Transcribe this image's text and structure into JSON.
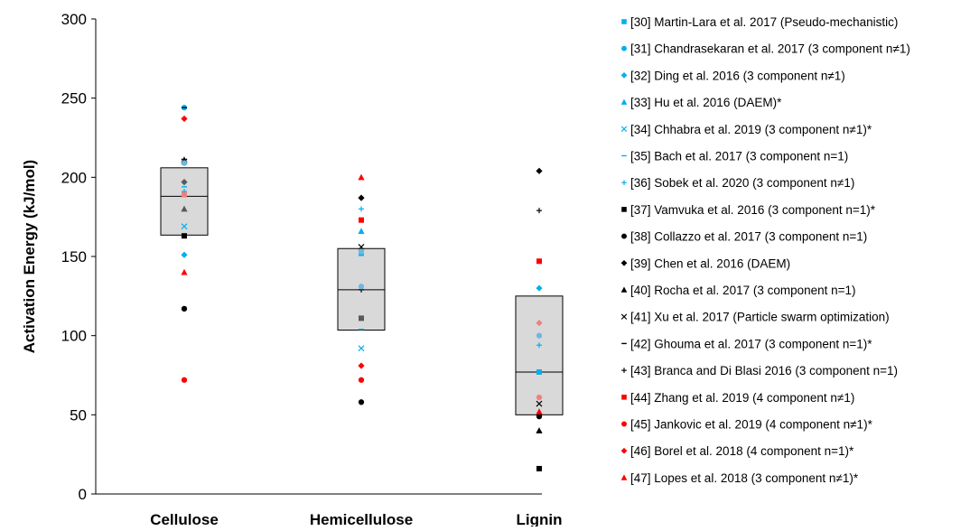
{
  "chart_data": {
    "type": "scatter",
    "title": "",
    "xlabel": "",
    "ylabel": "Activation Energy (kJ/mol)",
    "ylim": [
      0,
      300
    ],
    "yticks": [
      0,
      50,
      100,
      150,
      200,
      250,
      300
    ],
    "categories": [
      "Cellulose",
      "Hemicellulose",
      "Lignin"
    ],
    "grid": false,
    "legend_position": "right",
    "boxes": [
      {
        "category": "Cellulose",
        "q1": 163.5,
        "median": 188,
        "q3": 206
      },
      {
        "category": "Hemicellulose",
        "q1": 103.5,
        "median": 129,
        "q3": 155
      },
      {
        "category": "Lignin",
        "q1": 50,
        "median": 77,
        "q3": 125
      }
    ],
    "series": [
      {
        "name": "[30] Martin-Lara et al. 2017 (Pseudo-mechanistic)",
        "marker": "square",
        "color": "#00B0F0",
        "values": [
          null,
          152,
          77
        ]
      },
      {
        "name": "[31] Chandrasekaran et al. 2017 (3 component n≠1)",
        "marker": "circle",
        "color": "#00B0F0",
        "values": [
          244,
          null,
          null
        ]
      },
      {
        "name": "[32] Ding et al. 2016 (3 component n≠1)",
        "marker": "diamond",
        "color": "#00B0F0",
        "values": [
          151,
          null,
          130
        ]
      },
      {
        "name": "[33] Hu et al. 2016 (DAEM)*",
        "marker": "triangle",
        "color": "#00B0F0",
        "values": [
          null,
          166,
          null
        ]
      },
      {
        "name": "[34] Chhabra et al. 2019 (3 component n≠1)*",
        "marker": "x",
        "color": "#00B0F0",
        "values": [
          169,
          92,
          null
        ]
      },
      {
        "name": "[35] Bach et al. 2017 (3 component n=1)",
        "marker": "dash",
        "color": "#00B0F0",
        "values": [
          194,
          104,
          null
        ]
      },
      {
        "name": "[36] Sobek et al. 2020 (3 component n≠1)",
        "marker": "plus",
        "color": "#00B0F0",
        "values": [
          191,
          180,
          94
        ]
      },
      {
        "name": "[37] Vamvuka et al. 2016 (3 component n=1)*",
        "marker": "square",
        "color": "#000000",
        "values": [
          163,
          null,
          16
        ]
      },
      {
        "name": "[38] Collazzo et al. 2017 (3 component n=1)",
        "marker": "circle",
        "color": "#000000",
        "values": [
          117,
          58,
          49
        ]
      },
      {
        "name": "[39] Chen et al. 2016 (DAEM)",
        "marker": "diamond",
        "color": "#000000",
        "values": [
          null,
          187,
          204
        ]
      },
      {
        "name": "[40] Rocha et al. 2017 (3 component n=1)",
        "marker": "triangle",
        "color": "#000000",
        "values": [
          211,
          null,
          40
        ]
      },
      {
        "name": "[41] Xu et al. 2017 (Particle swarm optimization)",
        "marker": "x",
        "color": "#000000",
        "values": [
          210,
          156,
          57
        ]
      },
      {
        "name": "[42] Ghouma et al. 2017 (3 component n=1)*",
        "marker": "dash",
        "color": "#000000",
        "values": [
          244,
          null,
          39
        ]
      },
      {
        "name": "[43] Branca and Di Blasi 2016 (3 component n=1)",
        "marker": "plus",
        "color": "#000000",
        "values": [
          null,
          129,
          179
        ]
      },
      {
        "name": "[44] Zhang et al. 2019 (4 component n≠1)",
        "marker": "square",
        "color": "#FF0000",
        "values": [
          null,
          173,
          147
        ]
      },
      {
        "name": "[45] Jankovic et al. 2019 (4 component n≠1)*",
        "marker": "circle",
        "color": "#FF0000",
        "values": [
          72,
          72,
          null
        ]
      },
      {
        "name": "[46] Borel et al. 2018 (4 component n=1)*",
        "marker": "diamond",
        "color": "#FF0000",
        "values": [
          237,
          81,
          null
        ]
      },
      {
        "name": "[47] Lopes et al. 2018 (3 component n≠1)*",
        "marker": "triangle",
        "color": "#FF0000",
        "values": [
          140,
          200,
          52
        ]
      }
    ],
    "overlay_points": [
      {
        "category": "Cellulose",
        "marker": "square",
        "color": "#F08080",
        "value": 189
      },
      {
        "category": "Cellulose",
        "marker": "diamond",
        "color": "#595959",
        "value": 197
      },
      {
        "category": "Cellulose",
        "marker": "triangle",
        "color": "#595959",
        "value": 180
      },
      {
        "category": "Cellulose",
        "marker": "circle",
        "color": "#6FB7E0",
        "value": 209
      },
      {
        "category": "Hemicellulose",
        "marker": "square",
        "color": "#6FB7E0",
        "value": 153
      },
      {
        "category": "Hemicellulose",
        "marker": "circle",
        "color": "#6FB7E0",
        "value": 131
      },
      {
        "category": "Hemicellulose",
        "marker": "square",
        "color": "#595959",
        "value": 111
      },
      {
        "category": "Lignin",
        "marker": "circle",
        "color": "#6FB7E0",
        "value": 100
      },
      {
        "category": "Lignin",
        "marker": "diamond",
        "color": "#F08080",
        "value": 108
      },
      {
        "category": "Lignin",
        "marker": "circle",
        "color": "#F08080",
        "value": 61
      }
    ]
  }
}
